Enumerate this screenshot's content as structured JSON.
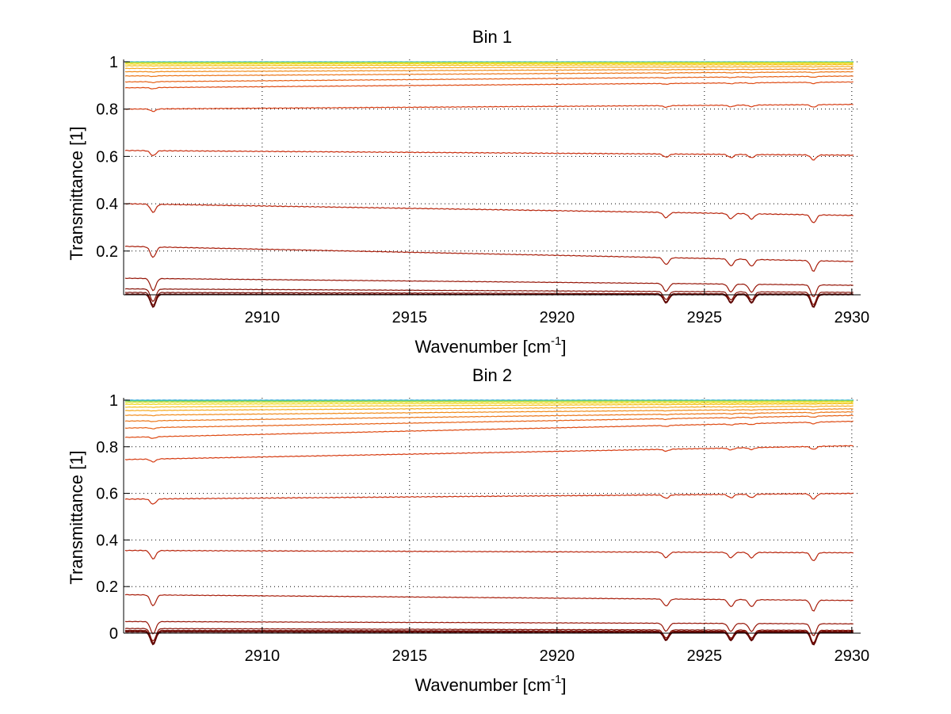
{
  "chart_data": [
    {
      "type": "line",
      "title": "Bin 1",
      "xlabel": "Wavenumber [cm",
      "xlabel_sup": "-1",
      "xlabel_close": "]",
      "ylabel": "Transmittance [1]",
      "xlim": [
        2905.3,
        2930.3
      ],
      "ylim": [
        0.015,
        1.01
      ],
      "xticks": [
        2910,
        2915,
        2920,
        2925,
        2930
      ],
      "xtick_labels": [
        "2910",
        "2915",
        "2920",
        "2925",
        "2930"
      ],
      "yticks": [
        0.2,
        0.4,
        0.6,
        0.8,
        1.0
      ],
      "ytick_labels": [
        "0.2",
        "0.4",
        "0.6",
        "0.8",
        "1"
      ],
      "grid": true,
      "dips_at": [
        2906.3,
        2923.7,
        2925.9,
        2926.6,
        2928.7
      ],
      "series": [
        {
          "start": 1.0,
          "end": 1.0,
          "color": "#1f9bd6"
        },
        {
          "start": 0.999,
          "end": 0.999,
          "color": "#34c3b8"
        },
        {
          "start": 0.997,
          "end": 0.998,
          "color": "#8fd65a"
        },
        {
          "start": 0.995,
          "end": 0.996,
          "color": "#d8e032"
        },
        {
          "start": 0.99,
          "end": 0.993,
          "color": "#f2d81e"
        },
        {
          "start": 0.983,
          "end": 0.988,
          "color": "#f5c01b"
        },
        {
          "start": 0.972,
          "end": 0.98,
          "color": "#f5a81b"
        },
        {
          "start": 0.958,
          "end": 0.97,
          "color": "#f08a18"
        },
        {
          "start": 0.94,
          "end": 0.958,
          "color": "#eb7517"
        },
        {
          "start": 0.915,
          "end": 0.94,
          "color": "#e66015"
        },
        {
          "start": 0.89,
          "end": 0.915,
          "color": "#de4a12"
        },
        {
          "start": 0.8,
          "end": 0.82,
          "color": "#d63a10"
        },
        {
          "start": 0.625,
          "end": 0.605,
          "color": "#c92e0e"
        },
        {
          "start": 0.4,
          "end": 0.35,
          "color": "#b8250c"
        },
        {
          "start": 0.22,
          "end": 0.155,
          "color": "#a81d0a"
        },
        {
          "start": 0.085,
          "end": 0.055,
          "color": "#961608"
        },
        {
          "start": 0.04,
          "end": 0.025,
          "color": "#851106"
        },
        {
          "start": 0.025,
          "end": 0.018,
          "color": "#740c04"
        },
        {
          "start": 0.018,
          "end": 0.016,
          "color": "#660803"
        },
        {
          "start": 0.016,
          "end": 0.015,
          "color": "#5a0502"
        }
      ]
    },
    {
      "type": "line",
      "title": "Bin 2",
      "xlabel": "Wavenumber [cm",
      "xlabel_sup": "-1",
      "xlabel_close": "]",
      "ylabel": "Transmittance [1]",
      "xlim": [
        2905.3,
        2930.3
      ],
      "ylim": [
        0.0,
        1.01
      ],
      "xticks": [
        2910,
        2915,
        2920,
        2925,
        2930
      ],
      "xtick_labels": [
        "2910",
        "2915",
        "2920",
        "2925",
        "2930"
      ],
      "yticks": [
        0.0,
        0.2,
        0.4,
        0.6,
        0.8,
        1.0
      ],
      "ytick_labels": [
        "0",
        "0.2",
        "0.4",
        "0.6",
        "0.8",
        "1"
      ],
      "grid": true,
      "dips_at": [
        2906.3,
        2923.7,
        2925.9,
        2926.6,
        2928.7
      ],
      "series": [
        {
          "start": 1.0,
          "end": 1.0,
          "color": "#1f9bd6"
        },
        {
          "start": 0.998,
          "end": 0.999,
          "color": "#34c3b8"
        },
        {
          "start": 0.995,
          "end": 0.997,
          "color": "#8fd65a"
        },
        {
          "start": 0.99,
          "end": 0.995,
          "color": "#d8e032"
        },
        {
          "start": 0.982,
          "end": 0.99,
          "color": "#f2d81e"
        },
        {
          "start": 0.97,
          "end": 0.985,
          "color": "#f5c01b"
        },
        {
          "start": 0.955,
          "end": 0.975,
          "color": "#f5a81b"
        },
        {
          "start": 0.935,
          "end": 0.963,
          "color": "#f08a18"
        },
        {
          "start": 0.91,
          "end": 0.95,
          "color": "#eb7517"
        },
        {
          "start": 0.88,
          "end": 0.935,
          "color": "#e66015"
        },
        {
          "start": 0.84,
          "end": 0.91,
          "color": "#de4a12"
        },
        {
          "start": 0.745,
          "end": 0.805,
          "color": "#d63a10"
        },
        {
          "start": 0.575,
          "end": 0.6,
          "color": "#c92e0e"
        },
        {
          "start": 0.355,
          "end": 0.345,
          "color": "#b8250c"
        },
        {
          "start": 0.165,
          "end": 0.14,
          "color": "#a81d0a"
        },
        {
          "start": 0.05,
          "end": 0.04,
          "color": "#961608"
        },
        {
          "start": 0.02,
          "end": 0.012,
          "color": "#851106"
        },
        {
          "start": 0.012,
          "end": 0.008,
          "color": "#740c04"
        },
        {
          "start": 0.008,
          "end": 0.005,
          "color": "#660803"
        },
        {
          "start": 0.005,
          "end": 0.003,
          "color": "#5a0502"
        }
      ]
    }
  ]
}
